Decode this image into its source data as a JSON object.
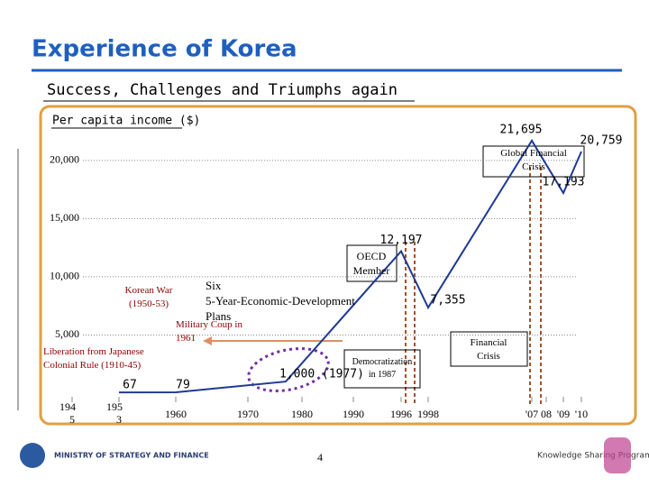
{
  "header": {
    "title": "Experience of Korea",
    "subtitle": "Success, Challenges and Triumphs again"
  },
  "chart_data": {
    "type": "line",
    "ylabel": "Per capita income ($)",
    "series": [
      {
        "name": null,
        "color": "#1f3a93",
        "x": [
          1953,
          1960,
          1977,
          1996,
          1998,
          2007,
          2009,
          2010
        ],
        "values": [
          67,
          79,
          1000,
          12197,
          7355,
          21695,
          17193,
          20759
        ],
        "value_labels": [
          "67",
          "79",
          "1,000 (1977)",
          "12,197",
          "7,355",
          "21,695",
          "17,193",
          "20,759"
        ]
      }
    ],
    "xticks": [
      {
        "value": 1945,
        "label": "194 5"
      },
      {
        "value": 1953,
        "label": "195 3"
      },
      1960,
      1970,
      1980,
      1990,
      1996,
      1998,
      {
        "value": 2007,
        "label": "'07"
      },
      {
        "value": 2008,
        "label": "08"
      },
      {
        "value": 2009,
        "label": "'09"
      },
      {
        "value": 2010,
        "label": "'10"
      }
    ],
    "ylim": [
      0,
      22000
    ],
    "yticks": [
      {
        "value": 5000,
        "label": "5,000"
      },
      {
        "value": 10000,
        "label": "10,000"
      },
      {
        "value": 15000,
        "label": "15,000"
      },
      {
        "value": 20000,
        "label": "20,000"
      }
    ],
    "grid": true,
    "annotations": [
      "Liberation from Japanese Colonial Rule (1910-45)",
      "Korean War (1950-53)",
      "Six 5-Year-Economic-Development Plans",
      "Military Coup in 1961",
      "Democratization in 1987",
      "OECD Member",
      "Financial Crisis",
      "Global Financial Crisis"
    ]
  },
  "footer": {
    "page": "4",
    "ministry": "MINISTRY OF STRATEGY AND FINANCE",
    "program": "Knowledge Sharing Program"
  }
}
